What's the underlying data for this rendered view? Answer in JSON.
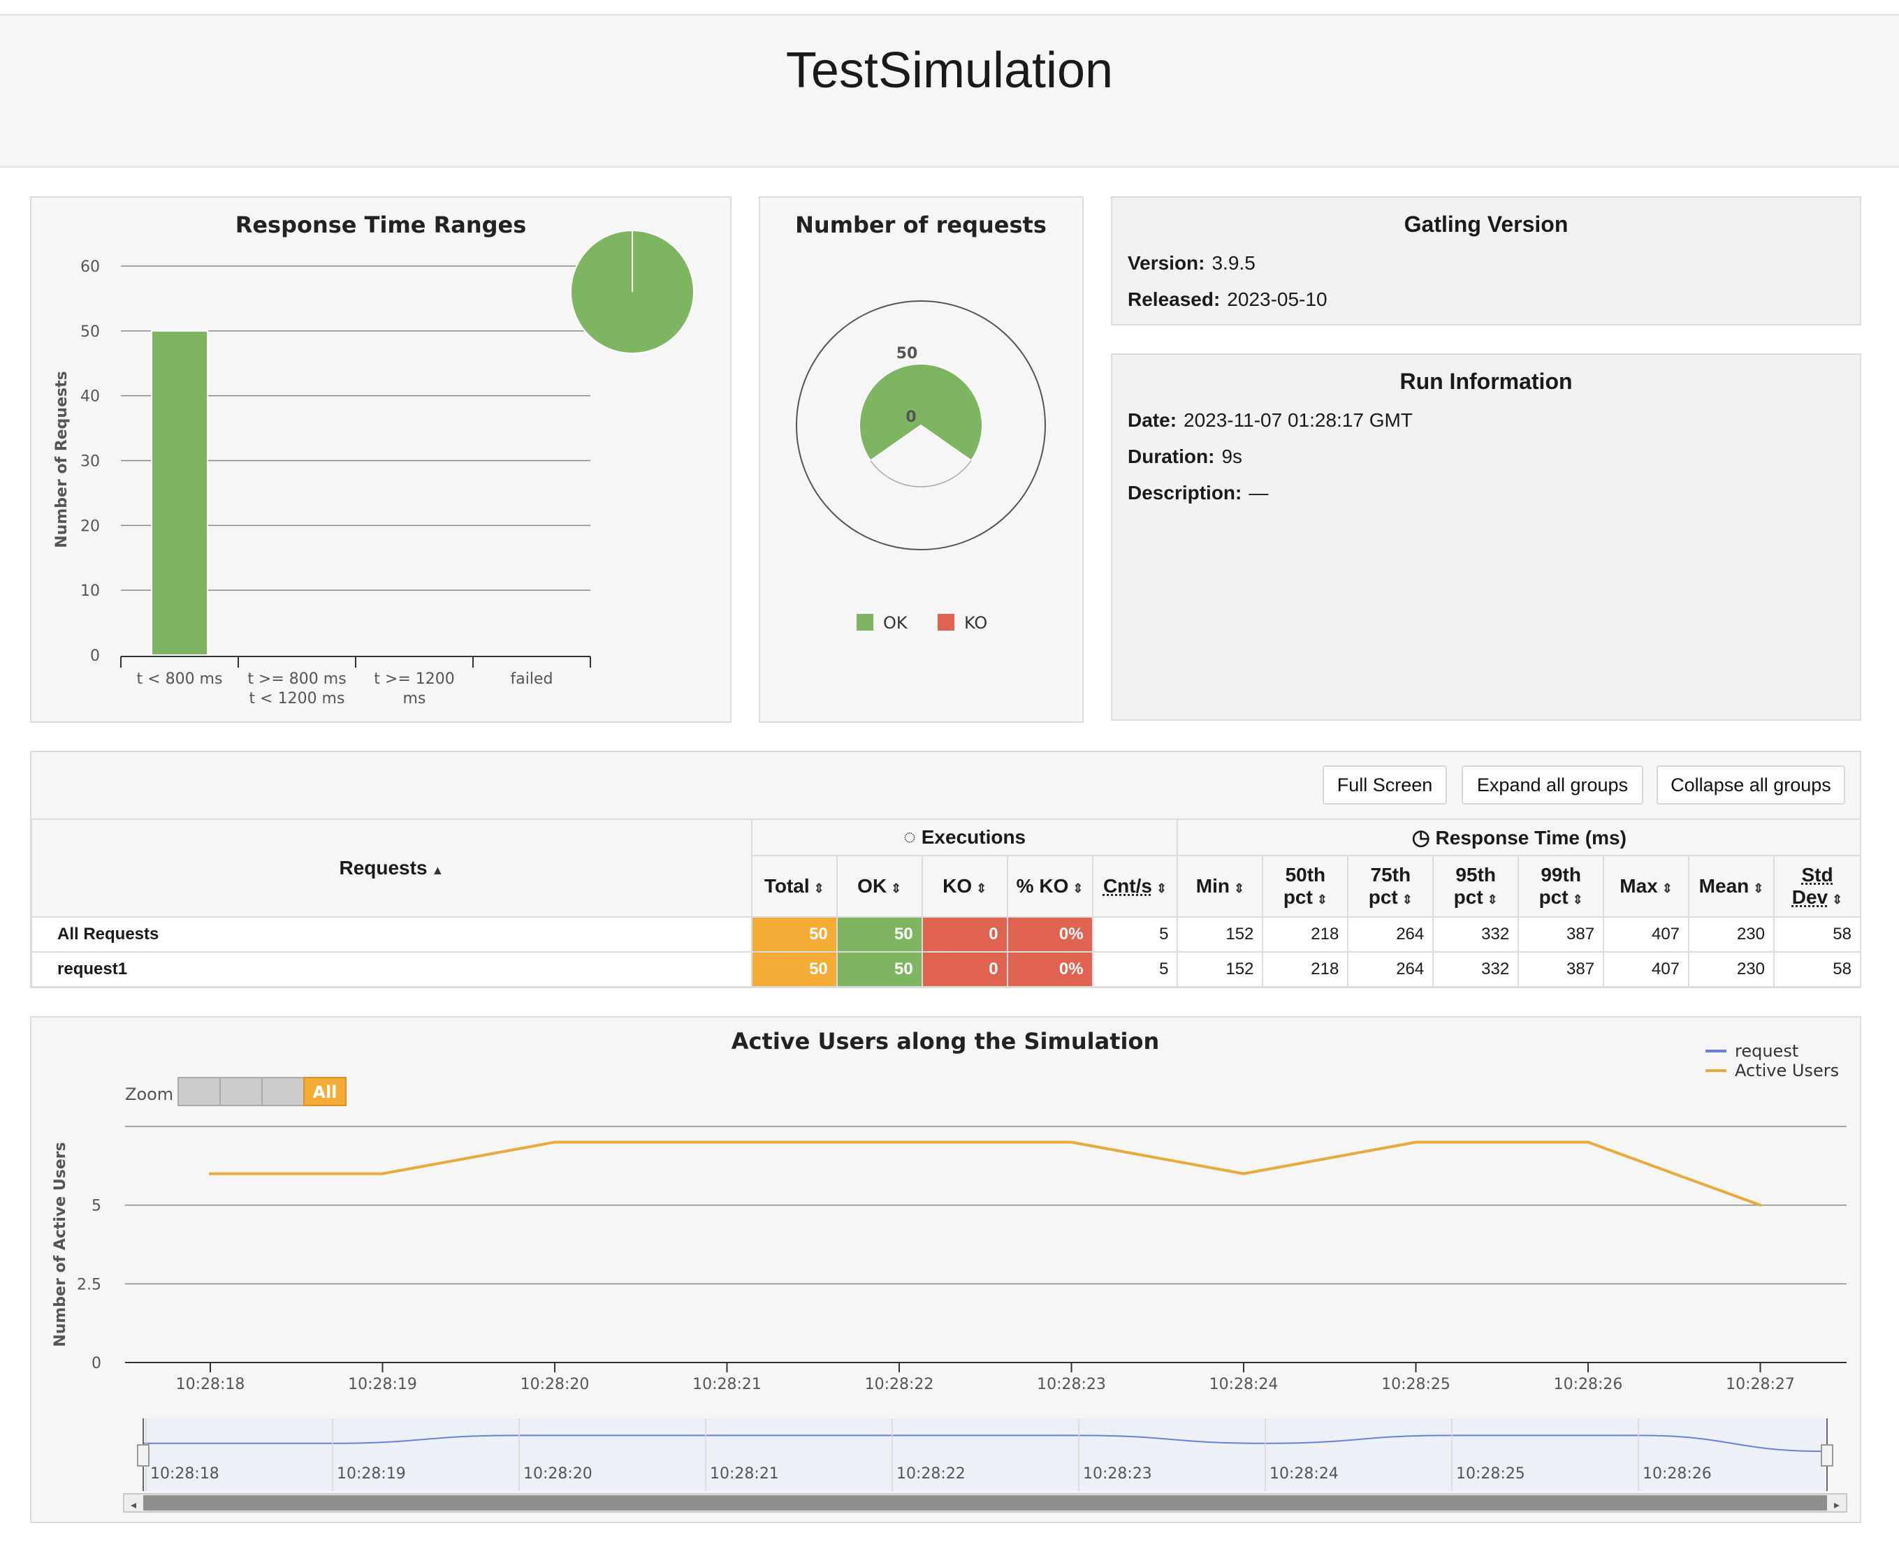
{
  "page_title": "TestSimulation",
  "response_time_ranges": {
    "title": "Response Time Ranges",
    "ylabel": "Number of Requests",
    "y_ticks": [
      "0",
      "10",
      "20",
      "30",
      "40",
      "50",
      "60"
    ],
    "categories": [
      {
        "line1": "t < 800 ms",
        "line2": ""
      },
      {
        "line1": "t >= 800 ms",
        "line2": "t < 1200 ms"
      },
      {
        "line1": "t >= 1200",
        "line2": "ms"
      },
      {
        "line1": "failed",
        "line2": ""
      }
    ],
    "bar_color": "#7db561"
  },
  "number_of_requests": {
    "title": "Number of requests",
    "outer_label": "50",
    "inner_label": "0",
    "legend": [
      {
        "label": "OK",
        "color": "#7db561"
      },
      {
        "label": "KO",
        "color": "#e06352"
      }
    ]
  },
  "gatling_version": {
    "title": "Gatling Version",
    "version_label": "Version:",
    "version": "3.9.5",
    "released_label": "Released:",
    "released": "2023-05-10"
  },
  "run_information": {
    "title": "Run Information",
    "date_label": "Date:",
    "date": "2023-11-07 01:28:17 GMT",
    "duration_label": "Duration:",
    "duration": "9s",
    "description_label": "Description:",
    "description": "—"
  },
  "toolbar": {
    "full_screen": "Full Screen",
    "expand_all": "Expand all groups",
    "collapse_all": "Collapse all groups"
  },
  "stats_table": {
    "requests_header": "Requests",
    "executions_header": "Executions",
    "response_time_header": "Response Time (ms)",
    "columns": {
      "total": "Total",
      "ok": "OK",
      "ko": "KO",
      "pct_ko": "% KO",
      "cnt_s": "Cnt/s",
      "min": "Min",
      "p50a": "50th",
      "p50b": "pct",
      "p75a": "75th",
      "p75b": "pct",
      "p95a": "95th",
      "p95b": "pct",
      "p99a": "99th",
      "p99b": "pct",
      "max": "Max",
      "mean": "Mean",
      "stda": "Std",
      "stdb": "Dev"
    },
    "rows": [
      {
        "name": "All Requests",
        "total": "50",
        "ok": "50",
        "ko": "0",
        "pct_ko": "0%",
        "cnt_s": "5",
        "min": "152",
        "p50": "218",
        "p75": "264",
        "p95": "332",
        "p99": "387",
        "max": "407",
        "mean": "230",
        "std": "58"
      },
      {
        "name": "request1",
        "total": "50",
        "ok": "50",
        "ko": "0",
        "pct_ko": "0%",
        "cnt_s": "5",
        "min": "152",
        "p50": "218",
        "p75": "264",
        "p95": "332",
        "p99": "387",
        "max": "407",
        "mean": "230",
        "std": "58"
      }
    ]
  },
  "active_users": {
    "title": "Active Users along the Simulation",
    "ylabel": "Number of Active Users",
    "y_ticks": [
      "0",
      "2.5",
      "5"
    ],
    "zoom_label": "Zoom",
    "zoom_all": "All",
    "legend": [
      {
        "label": "request",
        "color": "#6a7fdc"
      },
      {
        "label": "Active Users",
        "color": "#e9a93b"
      }
    ],
    "x_labels": [
      "10:28:18",
      "10:28:19",
      "10:28:20",
      "10:28:21",
      "10:28:22",
      "10:28:23",
      "10:28:24",
      "10:28:25",
      "10:28:26",
      "10:28:27"
    ],
    "navigator_labels": [
      "10:28:18",
      "10:28:19",
      "10:28:20",
      "10:28:21",
      "10:28:22",
      "10:28:23",
      "10:28:24",
      "10:28:25",
      "10:28:26"
    ]
  },
  "chart_data": [
    {
      "type": "bar",
      "title": "Response Time Ranges",
      "ylabel": "Number of Requests",
      "categories": [
        "t < 800 ms",
        "t >= 800 ms t < 1200 ms",
        "t >= 1200 ms",
        "failed"
      ],
      "values": [
        50,
        0,
        0,
        0
      ],
      "ylim": [
        0,
        60
      ],
      "grid": true
    },
    {
      "type": "pie",
      "title": "Response Time Ranges",
      "labels": [
        "t < 800 ms",
        "t >= 800 ms t < 1200 ms",
        "t >= 1200 ms",
        "failed"
      ],
      "values": [
        50,
        0,
        0,
        0
      ]
    },
    {
      "type": "pie",
      "title": "Number of requests",
      "labels": [
        "OK",
        "KO"
      ],
      "values": [
        50,
        0
      ]
    },
    {
      "type": "line",
      "title": "Active Users along the Simulation",
      "ylabel": "Number of Active Users",
      "x": [
        "10:28:18",
        "10:28:19",
        "10:28:20",
        "10:28:21",
        "10:28:22",
        "10:28:23",
        "10:28:24",
        "10:28:25",
        "10:28:26",
        "10:28:27"
      ],
      "series": [
        {
          "name": "Active Users",
          "values": [
            6,
            6,
            7,
            7,
            7,
            7,
            6,
            7,
            7,
            5
          ]
        }
      ],
      "ylim": [
        0,
        7.5
      ],
      "legend": "top-right",
      "grid": true
    }
  ]
}
